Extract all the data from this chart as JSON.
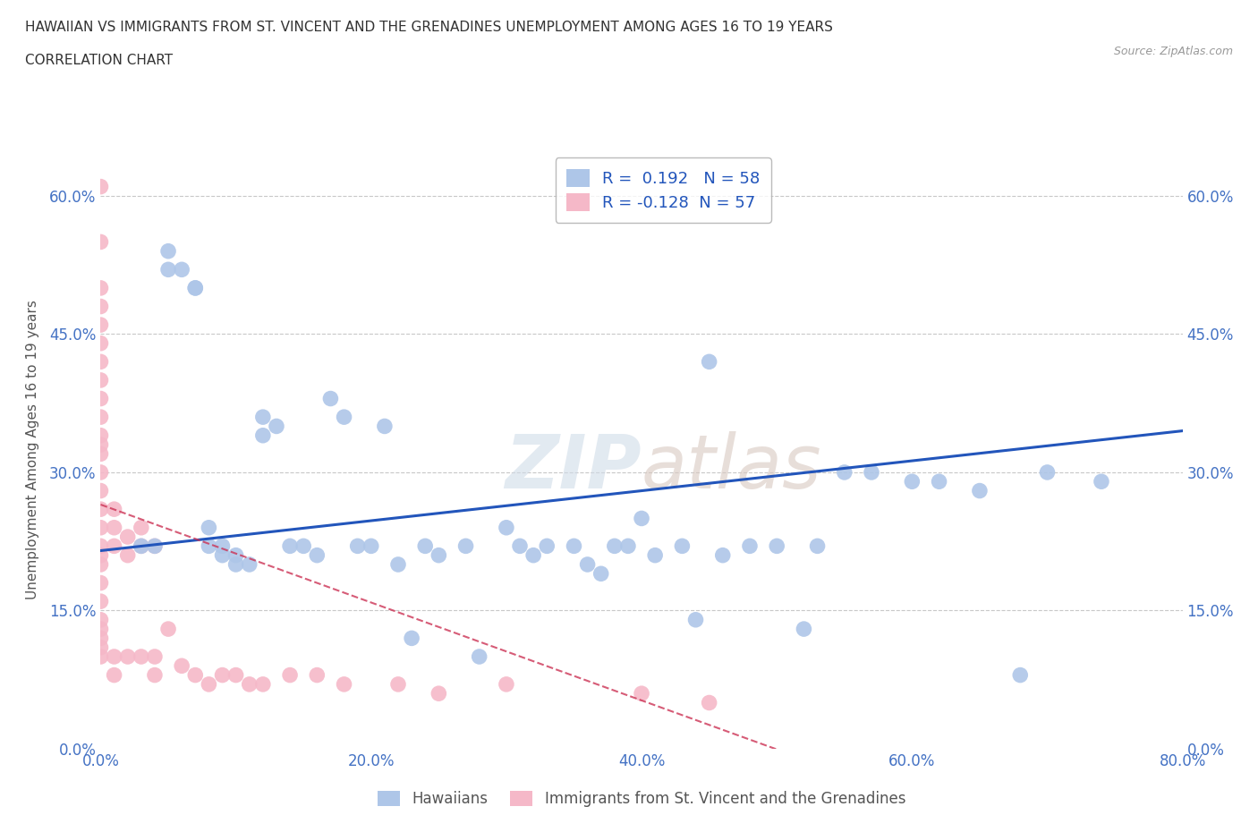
{
  "title_line1": "HAWAIIAN VS IMMIGRANTS FROM ST. VINCENT AND THE GRENADINES UNEMPLOYMENT AMONG AGES 16 TO 19 YEARS",
  "title_line2": "CORRELATION CHART",
  "source": "Source: ZipAtlas.com",
  "ylabel": "Unemployment Among Ages 16 to 19 years",
  "xlim": [
    0.0,
    0.8
  ],
  "ylim": [
    0.0,
    0.65
  ],
  "xticks": [
    0.0,
    0.2,
    0.4,
    0.6,
    0.8
  ],
  "yticks": [
    0.0,
    0.15,
    0.3,
    0.45,
    0.6
  ],
  "r_hawaiian": 0.192,
  "n_hawaiian": 58,
  "r_svg": -0.128,
  "n_svg": 57,
  "hawaiian_color": "#aec6e8",
  "svg_color": "#f5b8c8",
  "hawaiian_line_color": "#2255bb",
  "svg_line_color": "#cc3355",
  "background_color": "#ffffff",
  "grid_color": "#c8c8c8",
  "hawaiian_x": [
    0.03,
    0.04,
    0.05,
    0.05,
    0.06,
    0.07,
    0.07,
    0.08,
    0.08,
    0.09,
    0.09,
    0.1,
    0.1,
    0.11,
    0.12,
    0.12,
    0.13,
    0.14,
    0.15,
    0.16,
    0.17,
    0.18,
    0.19,
    0.2,
    0.21,
    0.22,
    0.23,
    0.24,
    0.25,
    0.27,
    0.28,
    0.3,
    0.31,
    0.32,
    0.33,
    0.35,
    0.36,
    0.37,
    0.38,
    0.39,
    0.4,
    0.41,
    0.43,
    0.44,
    0.45,
    0.46,
    0.48,
    0.5,
    0.52,
    0.53,
    0.55,
    0.57,
    0.6,
    0.62,
    0.65,
    0.68,
    0.7,
    0.74
  ],
  "hawaiian_y": [
    0.22,
    0.22,
    0.54,
    0.52,
    0.52,
    0.5,
    0.5,
    0.24,
    0.22,
    0.22,
    0.21,
    0.21,
    0.2,
    0.2,
    0.36,
    0.34,
    0.35,
    0.22,
    0.22,
    0.21,
    0.38,
    0.36,
    0.22,
    0.22,
    0.35,
    0.2,
    0.12,
    0.22,
    0.21,
    0.22,
    0.1,
    0.24,
    0.22,
    0.21,
    0.22,
    0.22,
    0.2,
    0.19,
    0.22,
    0.22,
    0.25,
    0.21,
    0.22,
    0.14,
    0.42,
    0.21,
    0.22,
    0.22,
    0.13,
    0.22,
    0.3,
    0.3,
    0.29,
    0.29,
    0.28,
    0.08,
    0.3,
    0.29
  ],
  "svg_x": [
    0.0,
    0.0,
    0.0,
    0.0,
    0.0,
    0.0,
    0.0,
    0.0,
    0.0,
    0.0,
    0.0,
    0.0,
    0.0,
    0.0,
    0.0,
    0.0,
    0.0,
    0.0,
    0.0,
    0.0,
    0.0,
    0.0,
    0.0,
    0.0,
    0.0,
    0.0,
    0.0,
    0.01,
    0.01,
    0.01,
    0.01,
    0.01,
    0.02,
    0.02,
    0.02,
    0.03,
    0.03,
    0.03,
    0.04,
    0.04,
    0.04,
    0.05,
    0.06,
    0.07,
    0.08,
    0.09,
    0.1,
    0.11,
    0.12,
    0.14,
    0.16,
    0.18,
    0.22,
    0.25,
    0.3,
    0.4,
    0.45
  ],
  "svg_y": [
    0.61,
    0.55,
    0.5,
    0.48,
    0.46,
    0.44,
    0.42,
    0.4,
    0.38,
    0.36,
    0.34,
    0.33,
    0.32,
    0.3,
    0.28,
    0.26,
    0.24,
    0.22,
    0.21,
    0.2,
    0.18,
    0.16,
    0.14,
    0.13,
    0.12,
    0.11,
    0.1,
    0.26,
    0.24,
    0.22,
    0.1,
    0.08,
    0.23,
    0.21,
    0.1,
    0.24,
    0.22,
    0.1,
    0.22,
    0.1,
    0.08,
    0.13,
    0.09,
    0.08,
    0.07,
    0.08,
    0.08,
    0.07,
    0.07,
    0.08,
    0.08,
    0.07,
    0.07,
    0.06,
    0.07,
    0.06,
    0.05
  ]
}
